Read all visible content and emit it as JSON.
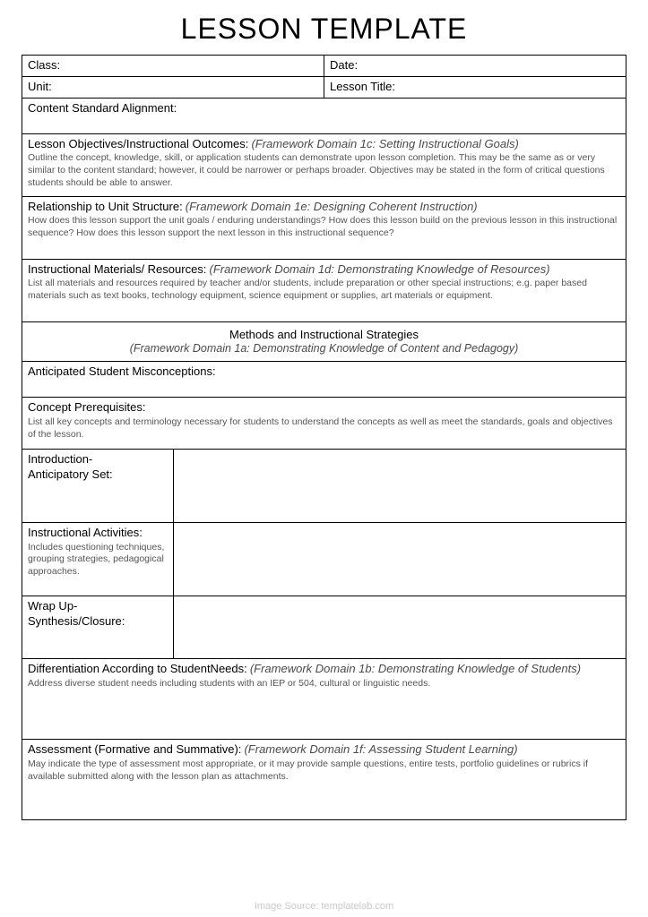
{
  "title": "LESSON TEMPLATE",
  "header": {
    "class": "Class:",
    "date": "Date:",
    "unit": "Unit:",
    "lessonTitle": "Lesson Title:"
  },
  "contentStd": {
    "label": "Content Standard Alignment:"
  },
  "objectives": {
    "label": "Lesson Objectives/Instructional Outcomes:",
    "frame": "(Framework Domain 1c: Setting Instructional Goals)",
    "desc": "Outline the concept, knowledge, skill, or application students can demonstrate upon lesson completion. This may be the same as or very similar to the content standard; however, it could be narrower or perhaps broader. Objectives may be stated in the form of critical questions students should be able to answer."
  },
  "relationship": {
    "label": "Relationship to Unit Structure:",
    "frame": "(Framework Domain 1e: Designing Coherent Instruction)",
    "desc": "How does this lesson support the unit goals / enduring understandings? How does this lesson build on the previous lesson in this instructional sequence? How does this lesson support the next lesson in this instructional sequence?"
  },
  "materials": {
    "label": "Instructional Materials/ Resources:",
    "frame": "(Framework Domain 1d: Demonstrating Knowledge of Resources)",
    "desc": "List all materials and resources required by teacher and/or students, include preparation or other special instructions; e.g. paper based materials such as text books, technology equipment, science equipment or supplies, art materials or equipment."
  },
  "methods": {
    "head": "Methods and Instructional Strategies",
    "sub": "(Framework Domain 1a: Demonstrating Knowledge of Content and Pedagogy)"
  },
  "misconceptions": {
    "label": "Anticipated Student Misconceptions:"
  },
  "prereq": {
    "label": "Concept Prerequisites:",
    "desc": "List all key concepts and terminology necessary for students to understand the concepts as well as meet the standards, goals and objectives of the lesson."
  },
  "intro": {
    "line1": "Introduction-",
    "line2": "Anticipatory Set:"
  },
  "activities": {
    "label": "Instructional Activities:",
    "desc": "Includes questioning techniques, grouping strategies, pedagogical approaches."
  },
  "wrap": {
    "line1": "Wrap Up-",
    "line2": "Synthesis/Closure:"
  },
  "diff": {
    "label": "Differentiation According to StudentNeeds:",
    "frame": "(Framework Domain 1b: Demonstrating Knowledge of Students)",
    "desc": "Address diverse student needs including students with an IEP or 504, cultural or linguistic needs."
  },
  "assess": {
    "label": "Assessment (Formative and Summative):",
    "frame": "(Framework Domain 1f: Assessing Student Learning)",
    "desc": "May indicate the type of assessment most appropriate, or it may provide sample questions, entire tests, portfolio guidelines or rubrics if available submitted along with the lesson plan as attachments."
  },
  "footer": "Image Source: templatelab.com",
  "style": {
    "pageWidth": 723,
    "pageHeight": 1024,
    "titleFontSize": 32,
    "labelFontSize": 13,
    "descFontSize": 10.5,
    "borderColor": "#000000",
    "descColor": "#555555",
    "italicColor": "#4a4a4a",
    "footerColor": "#c9c9c9",
    "background": "#ffffff",
    "leftColWidthPct": 26
  }
}
